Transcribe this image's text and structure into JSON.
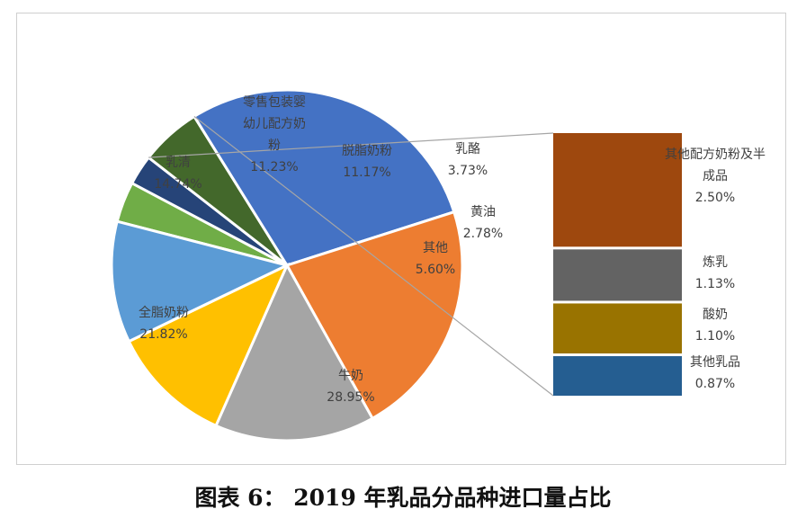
{
  "caption": "图表 6：   2019 年乳品分品种进口量占比",
  "chart_data": {
    "type": "pie",
    "title": "",
    "slices": [
      {
        "name": "乳酪",
        "value": 3.73,
        "label_lines": [
          "乳酪"
        ],
        "value_text": "3.73%",
        "color": "#70AD47"
      },
      {
        "name": "黄油",
        "value": 2.78,
        "label_lines": [
          "黄油"
        ],
        "value_text": "2.78%",
        "color": "#264478"
      },
      {
        "name": "其他",
        "value": 5.6,
        "label_lines": [
          "其他"
        ],
        "value_text": "5.60%",
        "color": "#43682B"
      },
      {
        "name": "牛奶",
        "value": 28.95,
        "label_lines": [
          "牛奶"
        ],
        "value_text": "28.95%",
        "color": "#4472C4"
      },
      {
        "name": "全脂奶粉",
        "value": 21.82,
        "label_lines": [
          "全脂奶粉"
        ],
        "value_text": "21.82%",
        "color": "#ED7D31"
      },
      {
        "name": "乳清",
        "value": 14.74,
        "label_lines": [
          "乳清"
        ],
        "value_text": "14.74%",
        "color": "#A5A5A5"
      },
      {
        "name": "零售包装婴幼儿配方奶粉",
        "value": 11.23,
        "label_lines": [
          "零售包装婴",
          "幼儿配方奶",
          "粉"
        ],
        "value_text": "11.23%",
        "color": "#FFC000"
      },
      {
        "name": "脱脂奶粉",
        "value": 11.17,
        "label_lines": [
          "脱脂奶粉"
        ],
        "value_text": "11.17%",
        "color": "#5B9BD5"
      }
    ],
    "breakdown_of": "其他",
    "breakdown": [
      {
        "name": "其他配方奶粉及半成品",
        "value": 2.5,
        "label_lines": [
          "其他配方奶粉及半",
          "成品"
        ],
        "value_text": "2.50%",
        "color": "#9E480E"
      },
      {
        "name": "炼乳",
        "value": 1.13,
        "label_lines": [
          "炼乳"
        ],
        "value_text": "1.13%",
        "color": "#636363"
      },
      {
        "name": "酸奶",
        "value": 1.1,
        "label_lines": [
          "酸奶"
        ],
        "value_text": "1.10%",
        "color": "#997300"
      },
      {
        "name": "其他乳品",
        "value": 0.87,
        "label_lines": [
          "其他乳品"
        ],
        "value_text": "0.87%",
        "color": "#255E91"
      }
    ]
  }
}
